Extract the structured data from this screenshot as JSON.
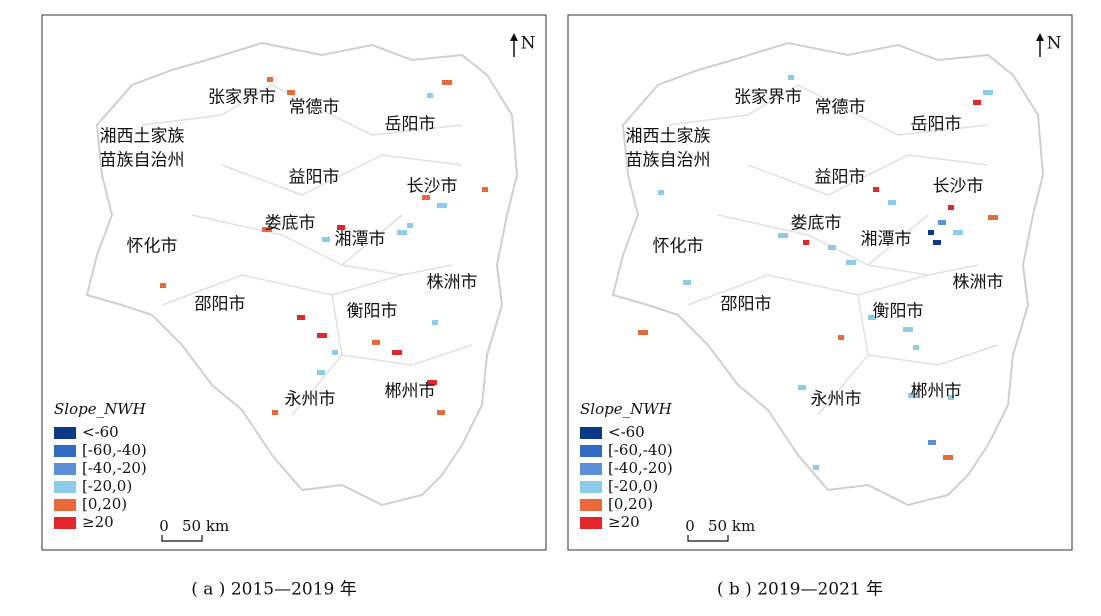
{
  "panels": [
    {
      "caption": "( a ) 2015—2019 年",
      "north": "N",
      "cities": [
        "张家界市",
        "常德市",
        "岳阳市",
        [
          "湘西土家族",
          "苗族自治州"
        ],
        "益阳市",
        "长沙市",
        "娄底市",
        "湘潭市",
        "怀化市",
        "株洲市",
        "邵阳市",
        "衡阳市",
        "永州市",
        "郴州市"
      ],
      "legend": {
        "title": "Slope_NWH",
        "items": [
          {
            "label": "<-60",
            "color": "#0b3a8a"
          },
          {
            "label": "[-60,-40)",
            "color": "#2f6cc4"
          },
          {
            "label": "[-40,-20)",
            "color": "#5b8fd6"
          },
          {
            "label": "[-20,0)",
            "color": "#8ccbea"
          },
          {
            "label": "[0,20)",
            "color": "#e8693a"
          },
          {
            "label": "≥20",
            "color": "#e3262a"
          }
        ]
      },
      "scale": {
        "zero": "0",
        "label": "50 km"
      }
    },
    {
      "caption": "( b ) 2019—2021 年",
      "north": "N",
      "cities": [
        "张家界市",
        "常德市",
        "岳阳市",
        [
          "湘西土家族",
          "苗族自治州"
        ],
        "益阳市",
        "长沙市",
        "娄底市",
        "湘潭市",
        "怀化市",
        "株洲市",
        "邵阳市",
        "衡阳市",
        "永州市",
        "郴州市"
      ],
      "legend": {
        "title": "Slope_NWH",
        "items": [
          {
            "label": "<-60",
            "color": "#0b3a8a"
          },
          {
            "label": "[-60,-40)",
            "color": "#2f6cc4"
          },
          {
            "label": "[-40,-20)",
            "color": "#5b8fd6"
          },
          {
            "label": "[-20,0)",
            "color": "#8ccbea"
          },
          {
            "label": "[0,20)",
            "color": "#e8693a"
          },
          {
            "label": "≥20",
            "color": "#e3262a"
          }
        ]
      },
      "scale": {
        "zero": "0",
        "label": "50 km"
      }
    }
  ]
}
